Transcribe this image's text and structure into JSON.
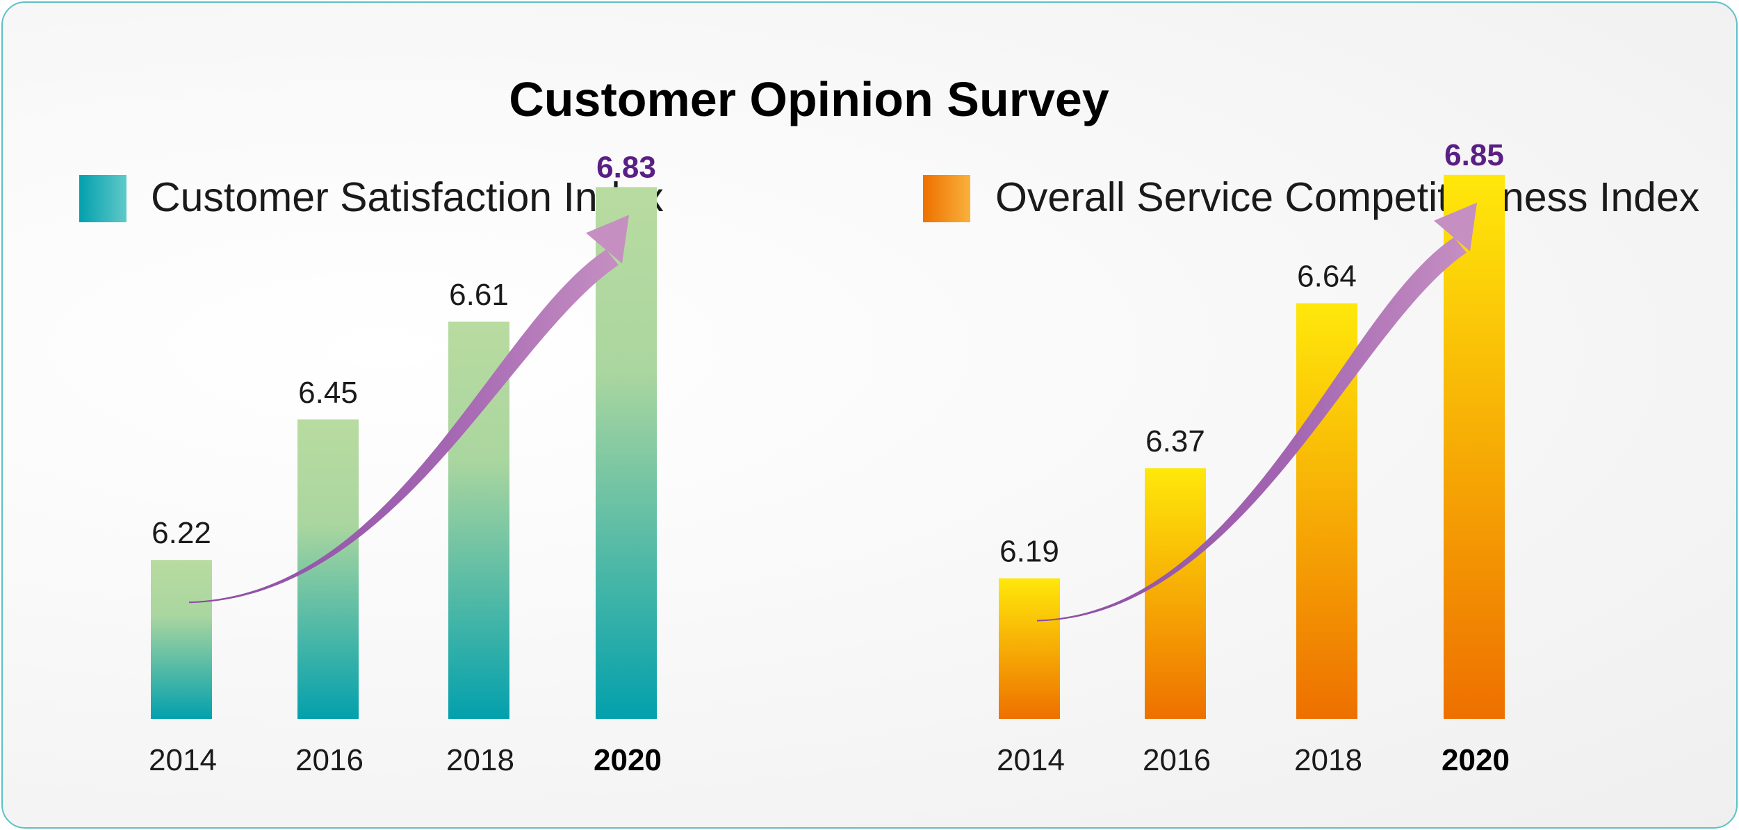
{
  "title": "Customer Opinion Survey",
  "colors": {
    "teal_top": "#b8dba0",
    "teal_bottom": "#03a0ad",
    "orange_top": "#ffe80a",
    "orange_bottom": "#ee7000",
    "arrow": "#c58fc2",
    "arrow_dark": "#8a4ca3",
    "highlight_text": "#5a1f84",
    "border": "#5cc1c6"
  },
  "chart_data": [
    {
      "type": "bar",
      "title": "Customer Satisfaction Index",
      "legend": "Customer Satisfaction Index",
      "categories": [
        "2014",
        "2016",
        "2018",
        "2020"
      ],
      "values": [
        6.22,
        6.45,
        6.61,
        6.83
      ],
      "value_labels": [
        "6.22",
        "6.45",
        "6.61",
        "6.83"
      ],
      "highlight_index": 3,
      "trend_arrow": true,
      "xlabel": "",
      "ylabel": "",
      "grid": false
    },
    {
      "type": "bar",
      "title": "Overall Service Competitiveness Index",
      "legend": "Overall Service Competitiveness Index",
      "categories": [
        "2014",
        "2016",
        "2018",
        "2020"
      ],
      "values": [
        6.19,
        6.37,
        6.64,
        6.85
      ],
      "value_labels": [
        "6.19",
        "6.37",
        "6.64",
        "6.85"
      ],
      "highlight_index": 3,
      "trend_arrow": true,
      "xlabel": "",
      "ylabel": "",
      "grid": false
    }
  ]
}
